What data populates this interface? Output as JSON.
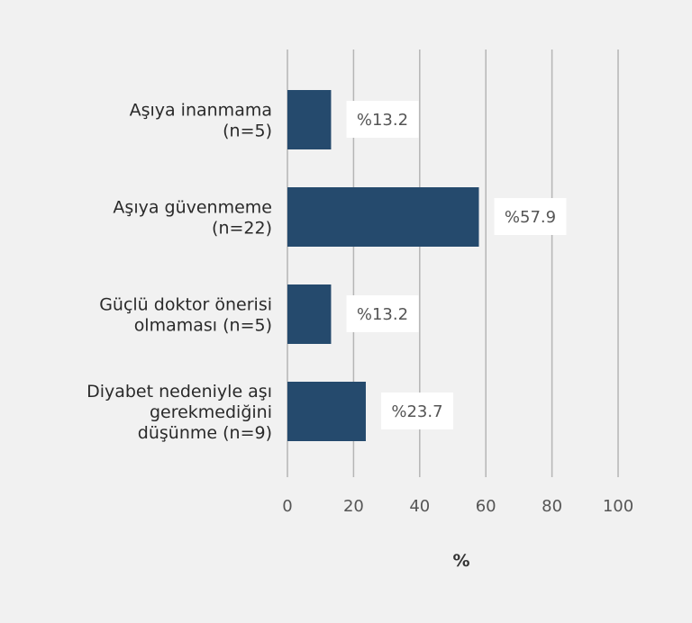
{
  "chart_data": {
    "type": "bar",
    "orientation": "horizontal",
    "categories": [
      [
        "Aşıya inanmama",
        "(n=5)"
      ],
      [
        "Aşıya güvenmeme",
        "(n=22)"
      ],
      [
        "Güçlü doktor önerisi",
        "olmaması (n=5)"
      ],
      [
        "Diyabet nedeniyle aşı",
        "gerekmediğini",
        "düşünme (n=9)"
      ]
    ],
    "values": [
      13.2,
      57.9,
      13.2,
      23.7
    ],
    "data_labels": [
      "%13.2",
      "%57.9",
      "%13.2",
      "%23.7"
    ],
    "xlabel": "%",
    "xlim": [
      0,
      100
    ],
    "xticks": [
      "0",
      "20",
      "40",
      "60",
      "80",
      "100"
    ],
    "grid": "vertical",
    "colors": {
      "bar": "#254a6d",
      "background": "#f1f1f1",
      "grid": "#b5b5b5",
      "label_box": "#ffffff"
    }
  }
}
